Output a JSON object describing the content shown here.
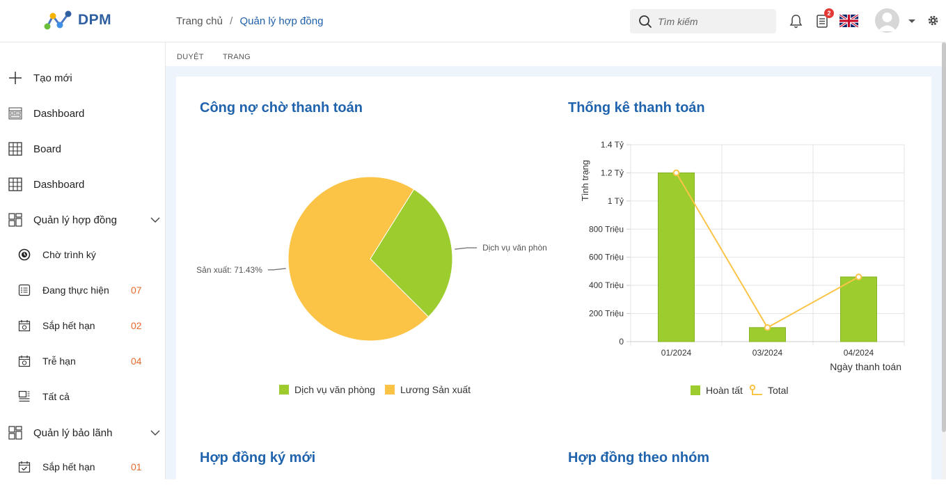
{
  "app": {
    "logo_text": "DPM"
  },
  "breadcrumb": {
    "home": "Trang chủ",
    "separator": "/",
    "current": "Quản lý hợp đồng"
  },
  "search": {
    "placeholder": "Tìm kiếm"
  },
  "header": {
    "notification_count": "2"
  },
  "tabs": {
    "tab1": "DUYỆT",
    "tab2": "TRANG"
  },
  "sidebar": {
    "items": [
      {
        "label": "Tạo mới",
        "icon": "plus-icon"
      },
      {
        "label": "Dashboard",
        "icon": "dashboard-icon"
      },
      {
        "label": "Board",
        "icon": "grid-icon"
      },
      {
        "label": "Dashboard",
        "icon": "grid-icon"
      },
      {
        "label": "Quản lý hợp đồng",
        "icon": "modules-icon"
      },
      {
        "label": "Chờ trình ký",
        "icon": "clock-icon"
      },
      {
        "label": "Đang thực hiện",
        "icon": "list-icon",
        "count": "07"
      },
      {
        "label": "Sắp hết hạn",
        "icon": "calendar-icon",
        "count": "02"
      },
      {
        "label": "Trễ hạn",
        "icon": "calendar-icon",
        "count": "04"
      },
      {
        "label": "Tất cả",
        "icon": "all-icon"
      },
      {
        "label": "Quản lý bảo lãnh",
        "icon": "modules-icon"
      },
      {
        "label": "Sắp hết hạn",
        "icon": "calendar-check-icon",
        "count": "01"
      }
    ]
  },
  "sections": {
    "debt_title": "Công nợ chờ thanh toán",
    "payment_title": "Thống kê thanh toán",
    "new_contracts_title": "Hợp đồng ký mới",
    "group_contracts_title": "Hợp đồng theo nhóm"
  },
  "colors": {
    "accent": "#1f63ad",
    "green": "#9ccc2e",
    "yellow": "#fcc446",
    "count": "#e8692c"
  },
  "chart_data": [
    {
      "type": "pie",
      "title": "Công nợ chờ thanh toán",
      "slices": [
        {
          "name": "Dịch vụ văn phòng",
          "value": 28.57,
          "color": "#9ccc2e",
          "label": "Dịch vụ văn phòn"
        },
        {
          "name": "Lương Sản xuất",
          "value": 71.43,
          "color": "#fcc446",
          "label": "Sản xuất: 71.43%"
        }
      ],
      "legend": [
        "Dịch vụ văn phòng",
        "Lương Sản xuất"
      ]
    },
    {
      "type": "bar",
      "title": "Thống kê thanh toán",
      "categories": [
        "01/2024",
        "03/2024",
        "04/2024"
      ],
      "series": [
        {
          "name": "Hoàn tất",
          "type": "bar",
          "values": [
            1.2,
            0.1,
            0.46
          ],
          "color": "#9ccc2e"
        },
        {
          "name": "Total",
          "type": "line",
          "values": [
            1.2,
            0.1,
            0.46
          ],
          "color": "#fcc446"
        }
      ],
      "ylabel": "Tình trạng",
      "xlabel": "Ngày thanh toán",
      "ylim": [
        0,
        1.4
      ],
      "yticks": [
        0,
        0.2,
        0.4,
        0.6,
        0.8,
        1.0,
        1.2,
        1.4
      ],
      "ytick_labels": [
        "0",
        "200 Triệu",
        "400 Triệu",
        "600 Triệu",
        "800 Triệu",
        "1 Tỷ",
        "1.2 Tỷ",
        "1.4 Tỷ"
      ],
      "grid": true,
      "legend": [
        "Hoàn tất",
        "Total"
      ]
    }
  ]
}
